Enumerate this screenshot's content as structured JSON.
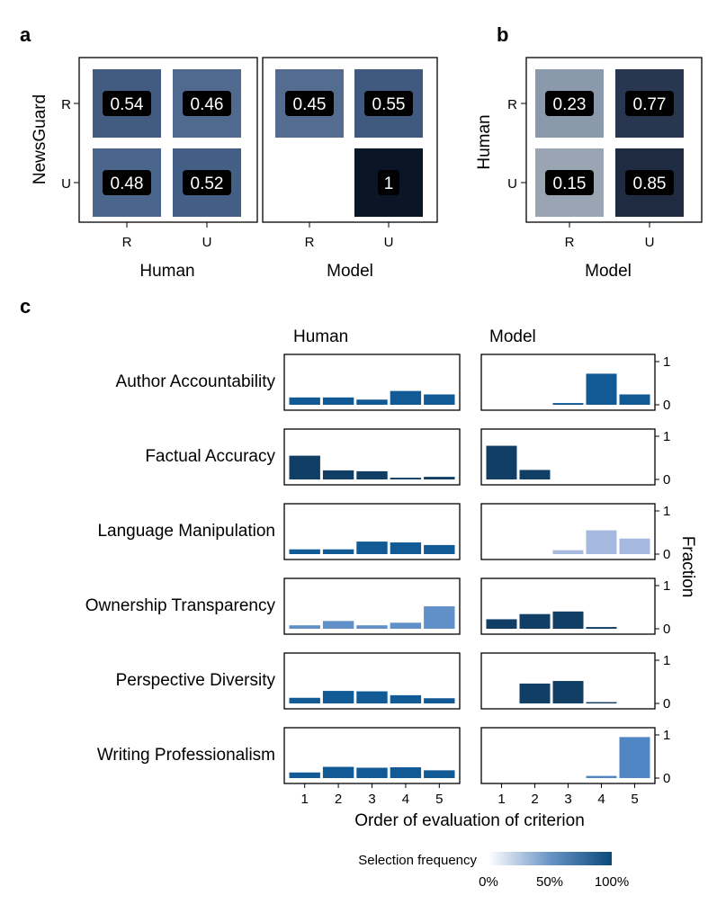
{
  "panel_labels": {
    "a": "a",
    "b": "b",
    "c": "c"
  },
  "chart_data": [
    {
      "type": "heatmap",
      "id": "a-left",
      "panel": "a",
      "xlabel": "Human",
      "ylabel": "NewsGuard",
      "x_categories": [
        "R",
        "U"
      ],
      "y_categories": [
        "R",
        "U"
      ],
      "cells": [
        {
          "row": "R",
          "col": "R",
          "value": 0.54,
          "label": "0.54"
        },
        {
          "row": "R",
          "col": "U",
          "value": 0.46,
          "label": "0.46"
        },
        {
          "row": "U",
          "col": "R",
          "value": 0.48,
          "label": "0.48"
        },
        {
          "row": "U",
          "col": "U",
          "value": 0.52,
          "label": "0.52"
        }
      ]
    },
    {
      "type": "heatmap",
      "id": "a-right",
      "panel": "a",
      "xlabel": "Model",
      "ylabel": "",
      "x_categories": [
        "R",
        "U"
      ],
      "y_categories": [
        "R",
        "U"
      ],
      "cells": [
        {
          "row": "R",
          "col": "R",
          "value": 0.45,
          "label": "0.45"
        },
        {
          "row": "R",
          "col": "U",
          "value": 0.55,
          "label": "0.55"
        },
        {
          "row": "U",
          "col": "U",
          "value": 1,
          "label": "1"
        }
      ]
    },
    {
      "type": "heatmap",
      "id": "b",
      "panel": "b",
      "xlabel": "Model",
      "ylabel": "Human",
      "x_categories": [
        "R",
        "U"
      ],
      "y_categories": [
        "R",
        "U"
      ],
      "cells": [
        {
          "row": "R",
          "col": "R",
          "value": 0.23,
          "label": "0.23"
        },
        {
          "row": "R",
          "col": "U",
          "value": 0.77,
          "label": "0.77"
        },
        {
          "row": "U",
          "col": "R",
          "value": 0.15,
          "label": "0.15"
        },
        {
          "row": "U",
          "col": "U",
          "value": 0.85,
          "label": "0.85"
        }
      ]
    },
    {
      "type": "bar",
      "id": "c",
      "panel": "c",
      "column_titles": [
        "Human",
        "Model"
      ],
      "categories": [
        "1",
        "2",
        "3",
        "4",
        "5"
      ],
      "xlabel": "Order of evaluation of criterion",
      "ylabel": "Fraction",
      "ylim": [
        0,
        1
      ],
      "yticks": [
        "0",
        "1"
      ],
      "rows": [
        {
          "criterion": "Author Accountability",
          "human": [
            0.17,
            0.17,
            0.12,
            0.32,
            0.24
          ],
          "model": [
            0,
            0,
            0.04,
            0.72,
            0.24
          ],
          "human_freq": 0.9,
          "model_freq": 0.9
        },
        {
          "criterion": "Factual Accuracy",
          "human": [
            0.55,
            0.21,
            0.19,
            0.04,
            0.06
          ],
          "model": [
            0.78,
            0.22,
            0,
            0,
            0
          ],
          "human_freq": 1.0,
          "model_freq": 1.0
        },
        {
          "criterion": "Language Manipulation",
          "human": [
            0.11,
            0.11,
            0.29,
            0.27,
            0.21
          ],
          "model": [
            0,
            0,
            0.09,
            0.55,
            0.36
          ],
          "human_freq": 0.9,
          "model_freq": 0.35
        },
        {
          "criterion": "Ownership Transparency",
          "human": [
            0.08,
            0.18,
            0.08,
            0.14,
            0.52
          ],
          "model": [
            0.22,
            0.34,
            0.4,
            0.04,
            0
          ],
          "human_freq": 0.55,
          "model_freq": 1.0
        },
        {
          "criterion": "Perspective Diversity",
          "human": [
            0.13,
            0.29,
            0.28,
            0.19,
            0.12
          ],
          "model": [
            0,
            0.46,
            0.52,
            0.03,
            0
          ],
          "human_freq": 0.9,
          "model_freq": 1.0
        },
        {
          "criterion": "Writing Professionalism",
          "human": [
            0.13,
            0.26,
            0.24,
            0.25,
            0.18
          ],
          "model": [
            0,
            0,
            0,
            0.05,
            0.95
          ],
          "human_freq": 0.9,
          "model_freq": 0.6
        }
      ]
    }
  ],
  "legend": {
    "title": "Selection frequency",
    "ticks": [
      "0%",
      "50%",
      "100%"
    ],
    "color_low": "#ffffff",
    "color_high": "#0a4a7a"
  }
}
